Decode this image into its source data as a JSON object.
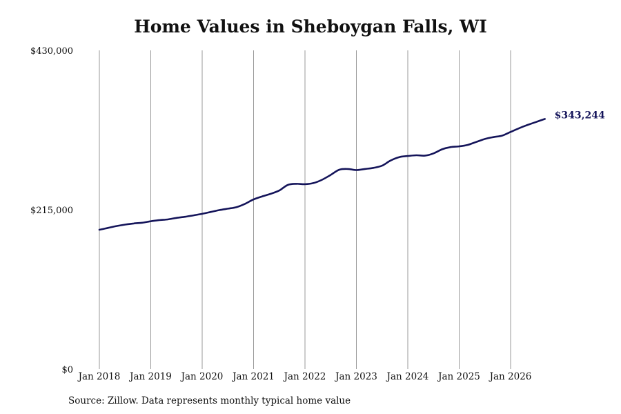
{
  "chart_data": {
    "type": "line",
    "title": "Home Values in Sheboygan Falls, WI",
    "xlabel": "",
    "ylabel": "",
    "ylim": [
      0,
      430000
    ],
    "y_ticks": [
      "$0",
      "$215,000",
      "$430,000"
    ],
    "y_tick_values": [
      0,
      215000,
      430000
    ],
    "x_ticks": [
      "Jan 2018",
      "Jan 2019",
      "Jan 2020",
      "Jan 2021",
      "Jan 2022",
      "Jan 2023",
      "Jan 2024",
      "Jan 2025",
      "Jan 2026"
    ],
    "x_tick_years": [
      2018,
      2019,
      2020,
      2021,
      2022,
      2023,
      2024,
      2025,
      2026
    ],
    "grid": "vertical",
    "line_color": "#14145a",
    "end_label": "$343,244",
    "series": [
      {
        "x": [
          "2018-01",
          "2018-03",
          "2018-05",
          "2018-07",
          "2018-09",
          "2018-11",
          "2019-01",
          "2019-03",
          "2019-05",
          "2019-07",
          "2019-09",
          "2019-11",
          "2020-01",
          "2020-03",
          "2020-05",
          "2020-07",
          "2020-09",
          "2020-11",
          "2021-01",
          "2021-03",
          "2021-05",
          "2021-07",
          "2021-09",
          "2021-11",
          "2022-01",
          "2022-03",
          "2022-05",
          "2022-07",
          "2022-09",
          "2022-11",
          "2023-01",
          "2023-03",
          "2023-05",
          "2023-07",
          "2023-09",
          "2023-11",
          "2024-01",
          "2024-03",
          "2024-05",
          "2024-07",
          "2024-09",
          "2024-11",
          "2025-01",
          "2025-03",
          "2025-05",
          "2025-07",
          "2025-09",
          "2025-11",
          "2026-01",
          "2026-03",
          "2026-05",
          "2026-07",
          "2026-09"
        ],
        "y": [
          188000,
          190500,
          193000,
          195000,
          196500,
          197500,
          199500,
          201000,
          202000,
          204000,
          205500,
          207500,
          209500,
          212000,
          214500,
          216500,
          218500,
          223000,
          229000,
          233000,
          236500,
          241000,
          248500,
          250000,
          249500,
          251000,
          255500,
          262000,
          269000,
          270000,
          268500,
          270000,
          271500,
          274500,
          281500,
          286000,
          287500,
          288500,
          288000,
          291000,
          296500,
          299500,
          300500,
          302500,
          306500,
          310500,
          313000,
          315000,
          320000,
          325000,
          329500,
          333500,
          337500
        ]
      }
    ]
  },
  "footer": {
    "source": "Source: Zillow. Data represents monthly typical home value"
  }
}
